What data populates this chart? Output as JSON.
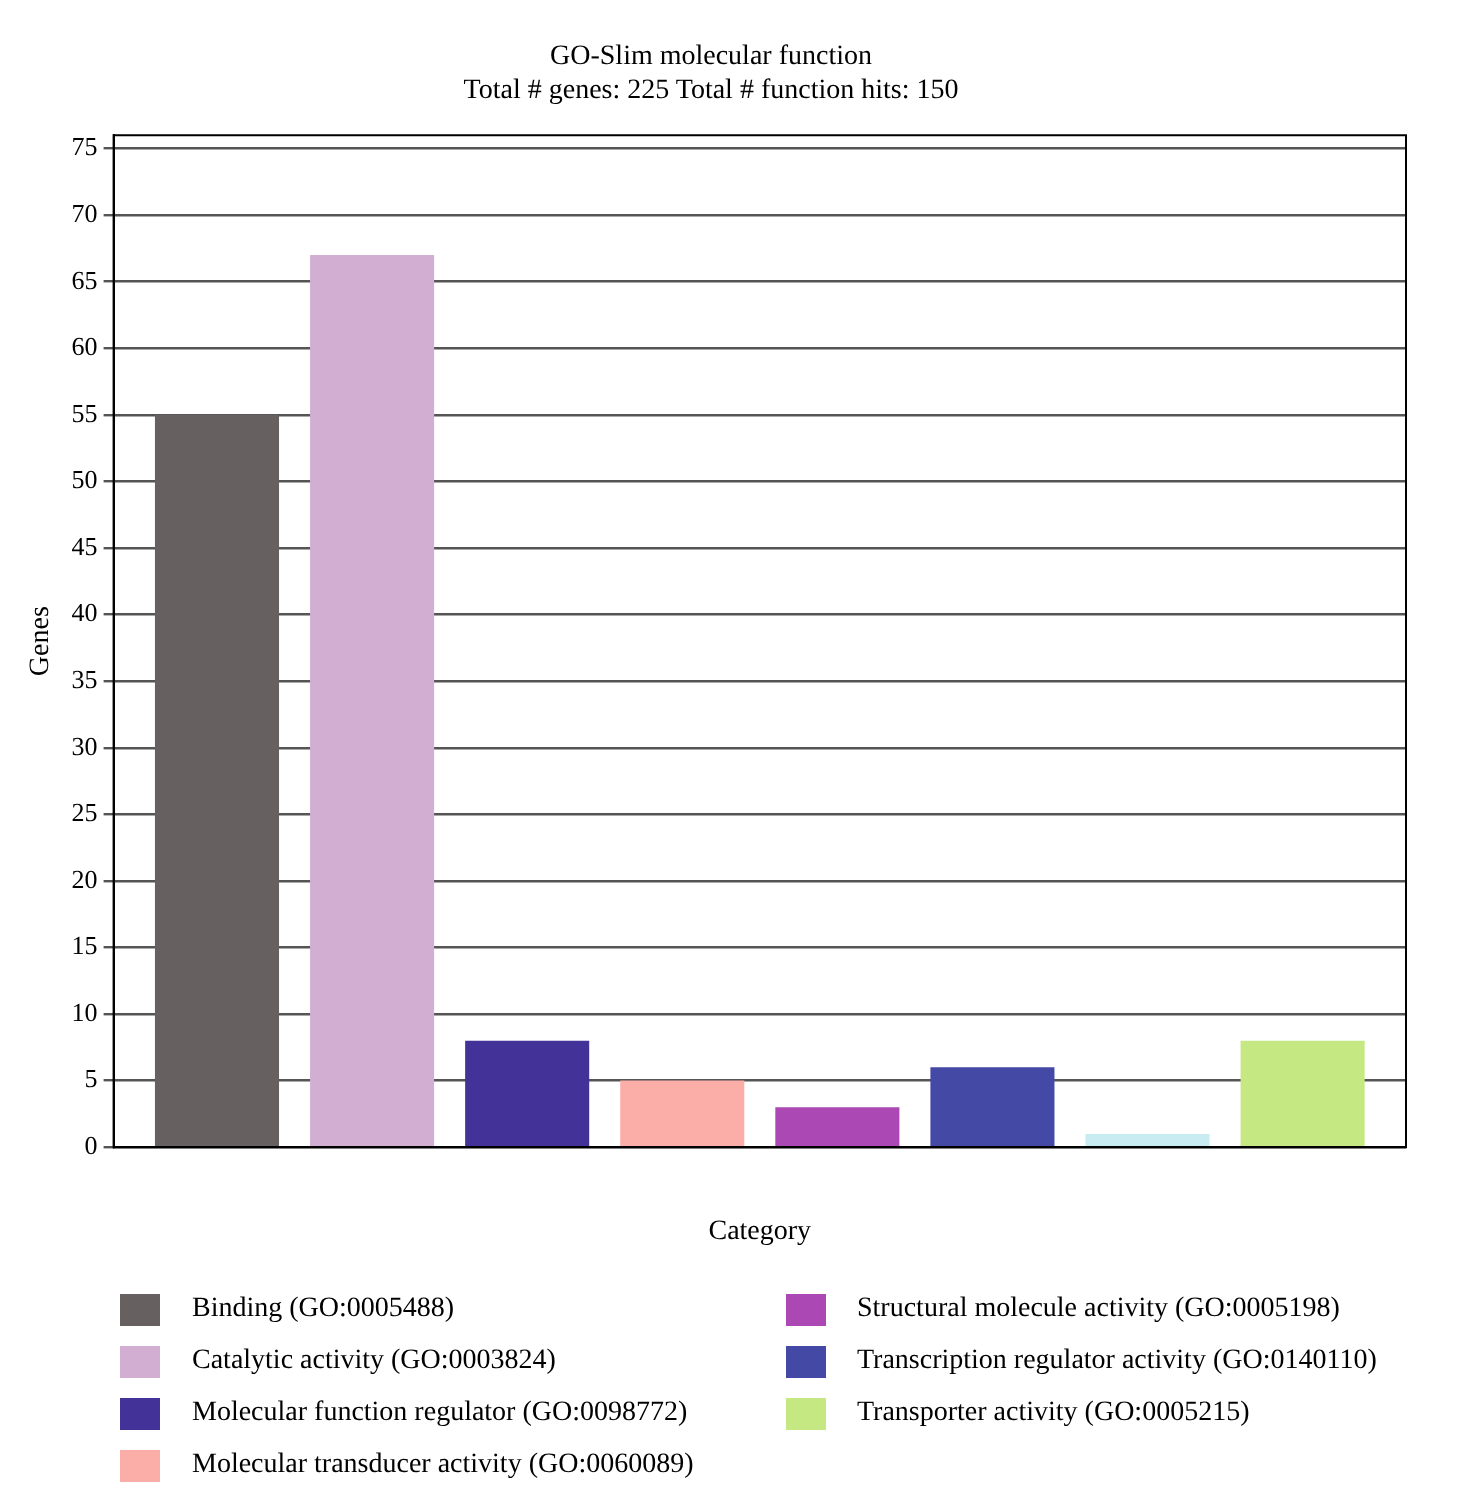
{
  "chart_data": {
    "type": "bar",
    "title": "GO-Slim molecular function",
    "subtitle": "Total # genes: 225 Total # function hits: 150",
    "xlabel": "Category",
    "ylabel": "Genes",
    "categories": [
      null
    ],
    "series": [
      {
        "name": "Binding (GO:0005488)",
        "color": "#666160",
        "values": [
          55
        ]
      },
      {
        "name": "Catalytic activity (GO:0003824)",
        "color": "#d2afd2",
        "values": [
          67
        ]
      },
      {
        "name": "Molecular function regulator (GO:0098772)",
        "color": "#433399",
        "values": [
          8
        ]
      },
      {
        "name": "Molecular transducer activity (GO:0060089)",
        "color": "#fbaea8",
        "values": [
          5
        ]
      },
      {
        "name": "Structural molecule activity (GO:0005198)",
        "color": "#ab48b4",
        "values": [
          3
        ]
      },
      {
        "name": "Transcription regulator activity (GO:0140110)",
        "color": "#4449a6",
        "values": [
          6
        ]
      },
      {
        "color": "#c8ecf2",
        "values": [
          1
        ]
      },
      {
        "name": "Transporter activity (GO:0005215)",
        "color": "#c6e883",
        "values": [
          8
        ]
      }
    ],
    "ylim": [
      0,
      76
    ],
    "yticks": [
      0,
      5,
      10,
      15,
      20,
      25,
      30,
      35,
      40,
      45,
      50,
      55,
      60,
      65,
      70,
      75
    ],
    "grid": "y",
    "legend": "bottom"
  }
}
